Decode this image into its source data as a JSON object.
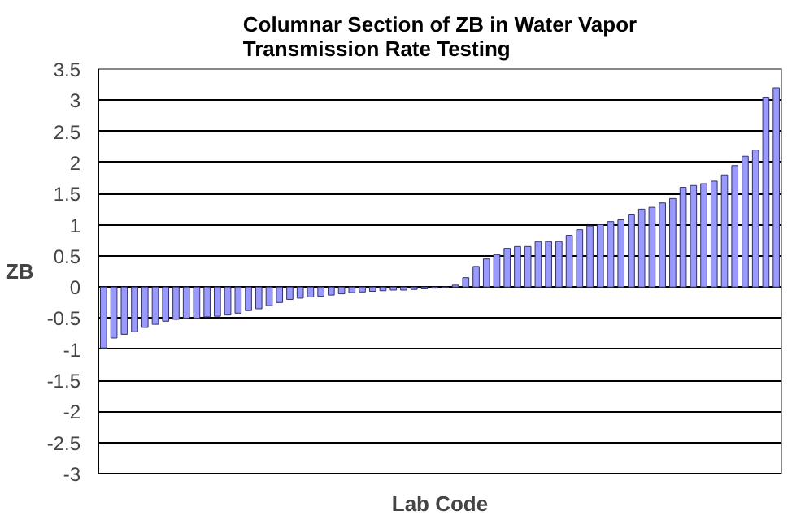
{
  "chart_data": {
    "type": "bar",
    "title": "Columnar Section of ZB in Water Vapor\nTransmission Rate Testing",
    "xlabel": "Lab Code",
    "ylabel": "ZB",
    "categories": [
      null,
      null,
      null,
      null,
      null,
      null,
      null,
      null,
      null,
      null,
      null,
      null,
      null,
      null,
      null,
      null,
      null,
      null,
      null,
      null,
      null,
      null,
      null,
      null,
      null,
      null,
      null,
      null,
      null,
      null,
      null,
      null,
      null,
      null,
      null,
      null,
      null,
      null,
      null,
      null,
      null,
      null,
      null,
      null,
      null,
      null,
      null,
      null,
      null,
      null,
      null,
      null,
      null,
      null,
      null,
      null,
      null,
      null,
      null,
      null,
      null,
      null,
      null,
      null,
      null,
      null
    ],
    "values": [
      -0.98,
      -0.82,
      -0.76,
      -0.72,
      -0.65,
      -0.6,
      -0.55,
      -0.52,
      -0.5,
      -0.5,
      -0.48,
      -0.47,
      -0.45,
      -0.42,
      -0.38,
      -0.35,
      -0.3,
      -0.25,
      -0.2,
      -0.18,
      -0.16,
      -0.15,
      -0.13,
      -0.11,
      -0.09,
      -0.08,
      -0.07,
      -0.06,
      -0.05,
      -0.05,
      -0.04,
      -0.03,
      -0.02,
      -0.01,
      0.03,
      0.15,
      0.33,
      0.45,
      0.52,
      0.62,
      0.65,
      0.65,
      0.73,
      0.73,
      0.73,
      0.83,
      0.92,
      0.98,
      1.0,
      1.05,
      1.08,
      1.17,
      1.25,
      1.28,
      1.35,
      1.42,
      1.6,
      1.63,
      1.66,
      1.7,
      1.8,
      1.95,
      2.1,
      2.2,
      3.05,
      3.2
    ],
    "color": "#9999ff",
    "ylim": [
      -3,
      3.5
    ],
    "yticks": [
      -3,
      -2.5,
      -2,
      -1.5,
      -1,
      -0.5,
      0,
      0.5,
      1,
      1.5,
      2,
      2.5,
      3,
      3.5
    ],
    "grid": "y",
    "tick_labels": "y"
  }
}
